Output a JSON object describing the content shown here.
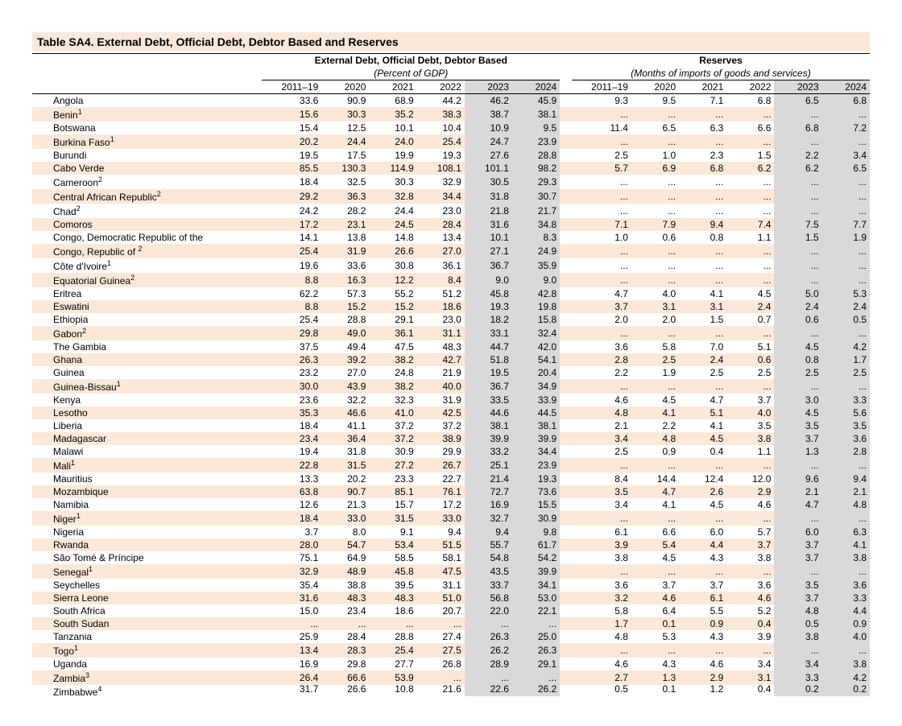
{
  "title": "Table SA4. External Debt, Official Debt, Debtor Based and Reserves",
  "group_headers": {
    "left": "External Debt, Official Debt, Debtor Based",
    "right": "Reserves"
  },
  "sub_headers": {
    "left": "(Percent of GDP)",
    "right": "(Months of imports of goods and services)"
  },
  "years": [
    "2011–19",
    "2020",
    "2021",
    "2022",
    "2023",
    "2024"
  ],
  "shaded_year_indices": [
    4,
    5
  ],
  "colors": {
    "row_alt": "#fce8d9",
    "shaded": "#d9d9d9",
    "border": "#000000",
    "text": "#000000",
    "background": "#ffffff"
  },
  "ellipsis": "...",
  "rows": [
    {
      "country": "Angola",
      "sup": "",
      "debt": [
        "33.6",
        "90.9",
        "68.9",
        "44.2",
        "46.2",
        "45.9"
      ],
      "res": [
        "9.3",
        "9.5",
        "7.1",
        "6.8",
        "6.5",
        "6.8"
      ]
    },
    {
      "country": "Benin",
      "sup": "1",
      "debt": [
        "15.6",
        "30.3",
        "35.2",
        "38.3",
        "38.7",
        "38.1"
      ],
      "res": [
        "...",
        "...",
        "...",
        "...",
        "...",
        "..."
      ]
    },
    {
      "country": "Botswana",
      "sup": "",
      "debt": [
        "15.4",
        "12.5",
        "10.1",
        "10.4",
        "10.9",
        "9.5"
      ],
      "res": [
        "11.4",
        "6.5",
        "6.3",
        "6.6",
        "6.8",
        "7.2"
      ]
    },
    {
      "country": "Burkina Faso",
      "sup": "1",
      "debt": [
        "20.2",
        "24.4",
        "24.0",
        "25.4",
        "24.7",
        "23.9"
      ],
      "res": [
        "...",
        "...",
        "...",
        "...",
        "...",
        "..."
      ]
    },
    {
      "country": "Burundi",
      "sup": "",
      "debt": [
        "19.5",
        "17.5",
        "19.9",
        "19.3",
        "27.6",
        "28.8"
      ],
      "res": [
        "2.5",
        "1.0",
        "2.3",
        "1.5",
        "2.2",
        "3.4"
      ]
    },
    {
      "country": "Cabo Verde",
      "sup": "",
      "debt": [
        "85.5",
        "130.3",
        "114.9",
        "108.1",
        "101.1",
        "98.2"
      ],
      "res": [
        "5.7",
        "6.9",
        "6.8",
        "6.2",
        "6.2",
        "6.5"
      ]
    },
    {
      "country": "Cameroon",
      "sup": "2",
      "debt": [
        "18.4",
        "32.5",
        "30.3",
        "32.9",
        "30.5",
        "29.3"
      ],
      "res": [
        "...",
        "...",
        "...",
        "...",
        "...",
        "..."
      ]
    },
    {
      "country": "Central African Republic",
      "sup": "2",
      "debt": [
        "29.2",
        "36.3",
        "32.8",
        "34.4",
        "31.8",
        "30.7"
      ],
      "res": [
        "...",
        "...",
        "...",
        "...",
        "...",
        "..."
      ]
    },
    {
      "country": "Chad",
      "sup": "2",
      "debt": [
        "24.2",
        "28.2",
        "24.4",
        "23.0",
        "21.8",
        "21.7"
      ],
      "res": [
        "...",
        "...",
        "...",
        "...",
        "...",
        "..."
      ]
    },
    {
      "country": "Comoros",
      "sup": "",
      "debt": [
        "17.2",
        "23.1",
        "24.5",
        "28.4",
        "31.6",
        "34.8"
      ],
      "res": [
        "7.1",
        "7.9",
        "9.4",
        "7.4",
        "7.5",
        "7.7"
      ]
    },
    {
      "country": "Congo, Democratic Republic of the",
      "sup": "",
      "debt": [
        "14.1",
        "13.8",
        "14.8",
        "13.4",
        "10.1",
        "8.3"
      ],
      "res": [
        "1.0",
        "0.6",
        "0.8",
        "1.1",
        "1.5",
        "1.9"
      ]
    },
    {
      "country": "Congo, Republic of ",
      "sup": "2",
      "debt": [
        "25.4",
        "31.9",
        "26.6",
        "27.0",
        "27.1",
        "24.9"
      ],
      "res": [
        "...",
        "...",
        "...",
        "...",
        "...",
        "..."
      ]
    },
    {
      "country": "Côte d'Ivoire",
      "sup": "1",
      "debt": [
        "19.6",
        "33.6",
        "30.8",
        "36.1",
        "36.7",
        "35.9"
      ],
      "res": [
        "...",
        "...",
        "...",
        "...",
        "...",
        "..."
      ]
    },
    {
      "country": "Equatorial Guinea",
      "sup": "2",
      "debt": [
        "8.8",
        "16.3",
        "12.2",
        "8.4",
        "9.0",
        "9.0"
      ],
      "res": [
        "...",
        "...",
        "...",
        "...",
        "...",
        "..."
      ]
    },
    {
      "country": "Eritrea",
      "sup": "",
      "debt": [
        "62.2",
        "57.3",
        "55.2",
        "51.2",
        "45.8",
        "42.8"
      ],
      "res": [
        "4.7",
        "4.0",
        "4.1",
        "4.5",
        "5.0",
        "5.3"
      ]
    },
    {
      "country": "Eswatini",
      "sup": "",
      "debt": [
        "8.8",
        "15.2",
        "15.2",
        "18.6",
        "19.3",
        "19.8"
      ],
      "res": [
        "3.7",
        "3.1",
        "3.1",
        "2.4",
        "2.4",
        "2.4"
      ]
    },
    {
      "country": "Ethiopia",
      "sup": "",
      "debt": [
        "25.4",
        "28.8",
        "29.1",
        "23.0",
        "18.2",
        "15.8"
      ],
      "res": [
        "2.0",
        "2.0",
        "1.5",
        "0.7",
        "0.6",
        "0.5"
      ]
    },
    {
      "country": "Gabon",
      "sup": "2",
      "debt": [
        "29.8",
        "49.0",
        "36.1",
        "31.1",
        "33.1",
        "32.4"
      ],
      "res": [
        "...",
        "...",
        "...",
        "...",
        "...",
        "..."
      ]
    },
    {
      "country": "The Gambia",
      "sup": "",
      "debt": [
        "37.5",
        "49.4",
        "47.5",
        "48.3",
        "44.7",
        "42.0"
      ],
      "res": [
        "3.6",
        "5.8",
        "7.0",
        "5.1",
        "4.5",
        "4.2"
      ]
    },
    {
      "country": "Ghana",
      "sup": "",
      "debt": [
        "26.3",
        "39.2",
        "38.2",
        "42.7",
        "51.8",
        "54.1"
      ],
      "res": [
        "2.8",
        "2.5",
        "2.4",
        "0.6",
        "0.8",
        "1.7"
      ]
    },
    {
      "country": "Guinea",
      "sup": "",
      "debt": [
        "23.2",
        "27.0",
        "24.8",
        "21.9",
        "19.5",
        "20.4"
      ],
      "res": [
        "2.2",
        "1.9",
        "2.5",
        "2.5",
        "2.5",
        "2.5"
      ]
    },
    {
      "country": "Guinea-Bissau",
      "sup": "1",
      "debt": [
        "30.0",
        "43.9",
        "38.2",
        "40.0",
        "36.7",
        "34.9"
      ],
      "res": [
        "...",
        "...",
        "...",
        "...",
        "...",
        "..."
      ]
    },
    {
      "country": "Kenya",
      "sup": "",
      "debt": [
        "23.6",
        "32.2",
        "32.3",
        "31.9",
        "33.5",
        "33.9"
      ],
      "res": [
        "4.6",
        "4.5",
        "4.7",
        "3.7",
        "3.0",
        "3.3"
      ]
    },
    {
      "country": "Lesotho",
      "sup": "",
      "debt": [
        "35.3",
        "46.6",
        "41.0",
        "42.5",
        "44.6",
        "44.5"
      ],
      "res": [
        "4.8",
        "4.1",
        "5.1",
        "4.0",
        "4.5",
        "5.6"
      ]
    },
    {
      "country": "Liberia",
      "sup": "",
      "debt": [
        "18.4",
        "41.1",
        "37.2",
        "37.2",
        "38.1",
        "38.1"
      ],
      "res": [
        "2.1",
        "2.2",
        "4.1",
        "3.5",
        "3.5",
        "3.5"
      ]
    },
    {
      "country": "Madagascar",
      "sup": "",
      "debt": [
        "23.4",
        "36.4",
        "37.2",
        "38.9",
        "39.9",
        "39.9"
      ],
      "res": [
        "3.4",
        "4.8",
        "4.5",
        "3.8",
        "3.7",
        "3.6"
      ]
    },
    {
      "country": "Malawi",
      "sup": "",
      "debt": [
        "19.4",
        "31.8",
        "30.9",
        "29.9",
        "33.2",
        "34.4"
      ],
      "res": [
        "2.5",
        "0.9",
        "0.4",
        "1.1",
        "1.3",
        "2.8"
      ]
    },
    {
      "country": "Mali",
      "sup": "1",
      "debt": [
        "22.8",
        "31.5",
        "27.2",
        "26.7",
        "25.1",
        "23.9"
      ],
      "res": [
        "...",
        "...",
        "...",
        "...",
        "...",
        "..."
      ]
    },
    {
      "country": "Mauritius",
      "sup": "",
      "debt": [
        "13.3",
        "20.2",
        "23.3",
        "22.7",
        "21.4",
        "19.3"
      ],
      "res": [
        "8.4",
        "14.4",
        "12.4",
        "12.0",
        "9.6",
        "9.4"
      ]
    },
    {
      "country": "Mozambique",
      "sup": "",
      "debt": [
        "63.8",
        "90.7",
        "85.1",
        "76.1",
        "72.7",
        "73.6"
      ],
      "res": [
        "3.5",
        "4.7",
        "2.6",
        "2.9",
        "2.1",
        "2.1"
      ]
    },
    {
      "country": "Namibia",
      "sup": "",
      "debt": [
        "12.6",
        "21.3",
        "15.7",
        "17.2",
        "16.9",
        "15.5"
      ],
      "res": [
        "3.4",
        "4.1",
        "4.5",
        "4.6",
        "4.7",
        "4.8"
      ]
    },
    {
      "country": "Niger",
      "sup": "1",
      "debt": [
        "18.4",
        "33.0",
        "31.5",
        "33.0",
        "32.7",
        "30.9"
      ],
      "res": [
        "...",
        "...",
        "...",
        "...",
        "...",
        "..."
      ]
    },
    {
      "country": "Nigeria",
      "sup": "",
      "debt": [
        "3.7",
        "8.0",
        "9.1",
        "9.4",
        "9.4",
        "9.8"
      ],
      "res": [
        "6.1",
        "6.6",
        "6.0",
        "5.7",
        "6.0",
        "6.3"
      ]
    },
    {
      "country": "Rwanda",
      "sup": "",
      "debt": [
        "28.0",
        "54.7",
        "53.4",
        "51.5",
        "55.7",
        "61.7"
      ],
      "res": [
        "3.9",
        "5.4",
        "4.4",
        "3.7",
        "3.7",
        "4.1"
      ]
    },
    {
      "country": "São Tomé & Príncipe",
      "sup": "",
      "debt": [
        "75.1",
        "64.9",
        "58.5",
        "58.1",
        "54.8",
        "54.2"
      ],
      "res": [
        "3.8",
        "4.5",
        "4.3",
        "3.8",
        "3.7",
        "3.8"
      ]
    },
    {
      "country": "Senegal",
      "sup": "1",
      "debt": [
        "32.9",
        "48.9",
        "45.8",
        "47.5",
        "43.5",
        "39.9"
      ],
      "res": [
        "...",
        "...",
        "...",
        "...",
        "...",
        "..."
      ]
    },
    {
      "country": "Seychelles",
      "sup": "",
      "debt": [
        "35.4",
        "38.8",
        "39.5",
        "31.1",
        "33.7",
        "34.1"
      ],
      "res": [
        "3.6",
        "3.7",
        "3.7",
        "3.6",
        "3.5",
        "3.6"
      ]
    },
    {
      "country": "Sierra Leone",
      "sup": "",
      "debt": [
        "31.6",
        "48.3",
        "48.3",
        "51.0",
        "56.8",
        "53.0"
      ],
      "res": [
        "3.2",
        "4.6",
        "6.1",
        "4.6",
        "3.7",
        "3.3"
      ]
    },
    {
      "country": "South Africa",
      "sup": "",
      "debt": [
        "15.0",
        "23.4",
        "18.6",
        "20.7",
        "22.0",
        "22.1"
      ],
      "res": [
        "5.8",
        "6.4",
        "5.5",
        "5.2",
        "4.8",
        "4.4"
      ]
    },
    {
      "country": "South Sudan",
      "sup": "",
      "debt": [
        "...",
        "...",
        "...",
        "...",
        "...",
        "..."
      ],
      "res": [
        "1.7",
        "0.1",
        "0.9",
        "0.4",
        "0.5",
        "0.9"
      ]
    },
    {
      "country": "Tanzania",
      "sup": "",
      "debt": [
        "25.9",
        "28.4",
        "28.8",
        "27.4",
        "26.3",
        "25.0"
      ],
      "res": [
        "4.8",
        "5.3",
        "4.3",
        "3.9",
        "3.8",
        "4.0"
      ]
    },
    {
      "country": "Togo",
      "sup": "1",
      "debt": [
        "13.4",
        "28.3",
        "25.4",
        "27.5",
        "26.2",
        "26.3"
      ],
      "res": [
        "...",
        "...",
        "...",
        "...",
        "...",
        "..."
      ]
    },
    {
      "country": "Uganda",
      "sup": "",
      "debt": [
        "16.9",
        "29.8",
        "27.7",
        "26.8",
        "28.9",
        "29.1"
      ],
      "res": [
        "4.6",
        "4.3",
        "4.6",
        "3.4",
        "3.4",
        "3.8"
      ]
    },
    {
      "country": "Zambia",
      "sup": "3",
      "debt": [
        "26.4",
        "66.6",
        "53.9",
        "...",
        "...",
        "..."
      ],
      "res": [
        "2.7",
        "1.3",
        "2.9",
        "3.1",
        "3.3",
        "4.2"
      ]
    },
    {
      "country": "Zimbabwe",
      "sup": "4",
      "debt": [
        "31.7",
        "26.6",
        "10.8",
        "21.6",
        "22.6",
        "26.2"
      ],
      "res": [
        "0.5",
        "0.1",
        "1.2",
        "0.4",
        "0.2",
        "0.2"
      ],
      "cutoff": true
    }
  ]
}
